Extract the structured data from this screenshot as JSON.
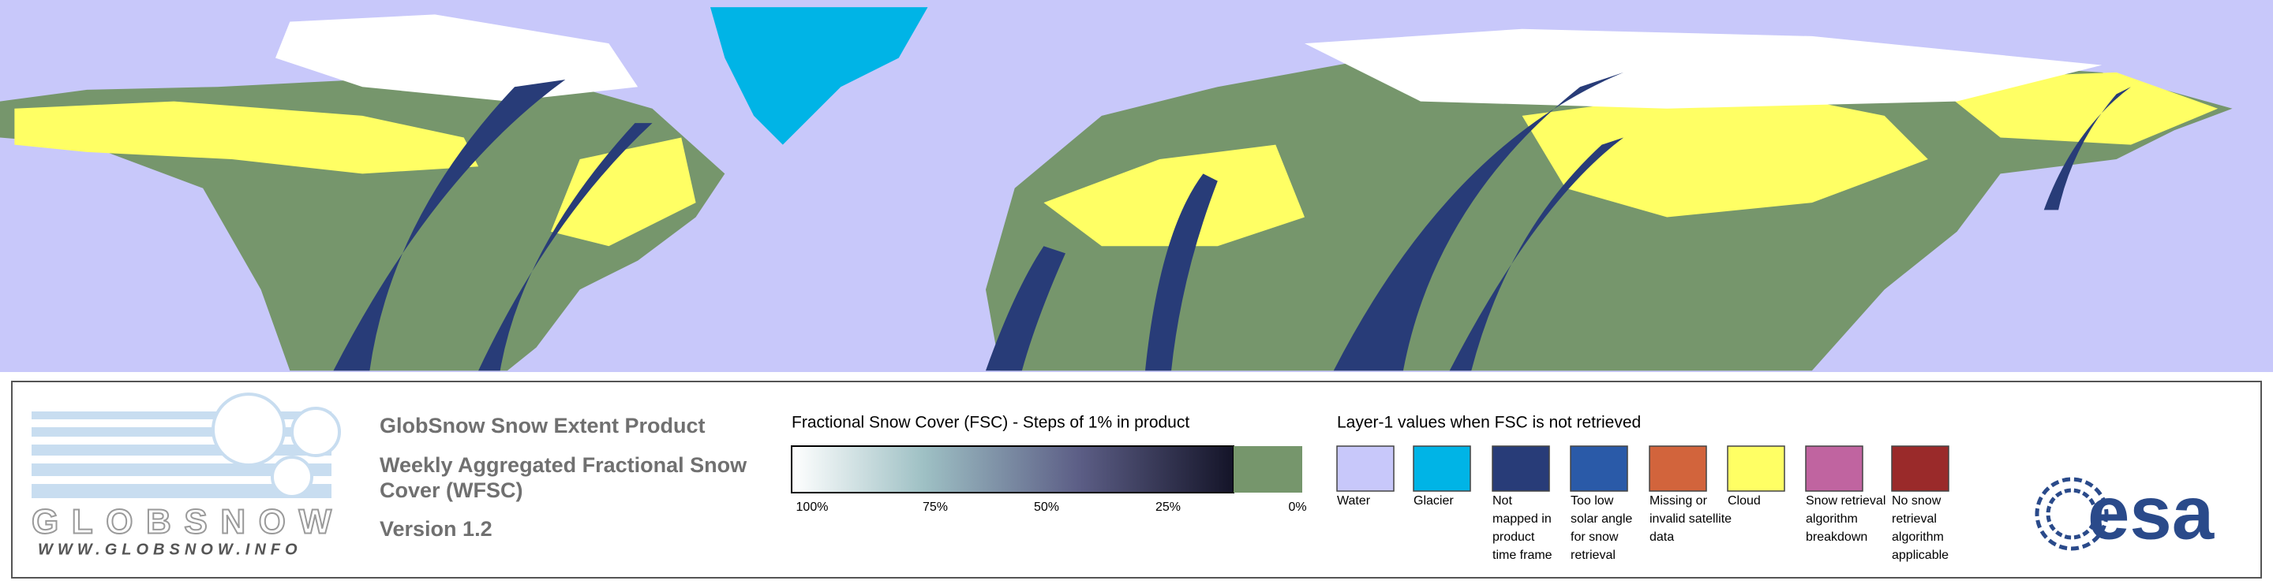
{
  "logo": {
    "name": "GLOBSNOW",
    "url": "WWW.GLOBSNOW.INFO"
  },
  "product": {
    "title": "GlobSnow Snow Extent Product",
    "subtitle": "Weekly Aggregated Fractional Snow Cover (WFSC)",
    "version": "Version 1.2"
  },
  "fsc_legend": {
    "title": "Fractional Snow Cover (FSC) - Steps of 1% in product",
    "labels": [
      "100%",
      "75%",
      "50%",
      "25%",
      "0%"
    ]
  },
  "layer1_legend": {
    "title": "Layer-1 values when FSC is not retrieved",
    "items": [
      {
        "label_lines": [
          "Water"
        ],
        "color": "#c8c8fa"
      },
      {
        "label_lines": [
          "Glacier"
        ],
        "color": "#00b4e6"
      },
      {
        "label_lines": [
          "Not",
          "mapped in",
          "product",
          "time frame"
        ],
        "color": "#283c78"
      },
      {
        "label_lines": [
          "Too low",
          "solar angle",
          "for snow",
          "retrieval"
        ],
        "color": "#2a5aa8"
      },
      {
        "label_lines": [
          "Missing or",
          "invalid satellite",
          "data"
        ],
        "color": "#d2643c"
      },
      {
        "label_lines": [
          "Cloud"
        ],
        "color": "#ffff64"
      },
      {
        "label_lines": [
          "Snow retrieval",
          "algorithm",
          "breakdown"
        ],
        "color": "#c064a0"
      },
      {
        "label_lines": [
          "No snow",
          "retrieval",
          "algorithm",
          "applicable"
        ],
        "color": "#9a2a2a"
      }
    ]
  },
  "partner": {
    "name": "esa"
  }
}
